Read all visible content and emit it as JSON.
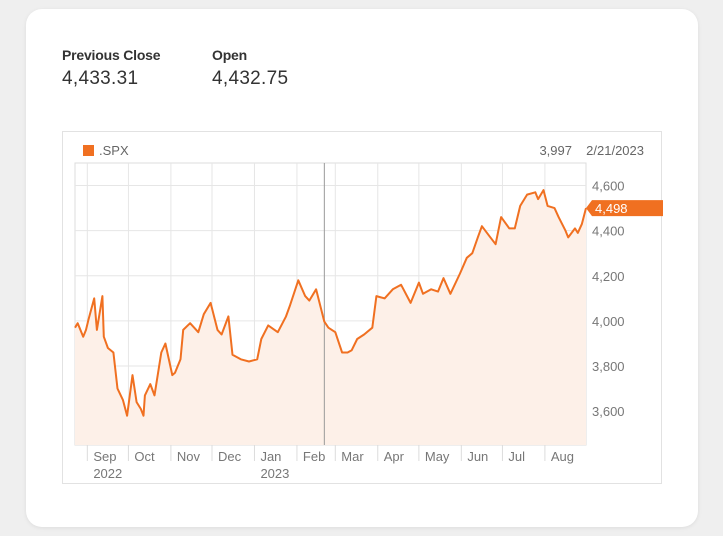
{
  "stats": {
    "previous_close_label": "Previous Close",
    "previous_close_value": "4,433.31",
    "open_label": "Open",
    "open_value": "4,432.75"
  },
  "chart_data": {
    "type": "area",
    "legend": [
      {
        "name": ".SPX",
        "color": "#f07021"
      }
    ],
    "legend_position": "top-left",
    "hover_readout": {
      "value": "3,997",
      "date": "2/21/2023"
    },
    "last_value_label": "4,498",
    "y_ticks": [
      3600,
      3800,
      4000,
      4200,
      4400,
      4600
    ],
    "y_tick_labels": [
      "3,600",
      "3,800",
      "4,000",
      "4,200",
      "4,400",
      "4,600"
    ],
    "ylim": [
      3450,
      4700
    ],
    "x_ticks": [
      {
        "label": "Sep",
        "year": "2022",
        "date": "2022-09-01"
      },
      {
        "label": "Oct",
        "year": "",
        "date": "2022-10-01"
      },
      {
        "label": "Nov",
        "year": "",
        "date": "2022-11-01"
      },
      {
        "label": "Dec",
        "year": "",
        "date": "2022-12-01"
      },
      {
        "label": "Jan",
        "year": "2023",
        "date": "2023-01-01"
      },
      {
        "label": "Feb",
        "year": "",
        "date": "2023-02-01"
      },
      {
        "label": "Mar",
        "year": "",
        "date": "2023-03-01"
      },
      {
        "label": "Apr",
        "year": "",
        "date": "2023-04-01"
      },
      {
        "label": "May",
        "year": "",
        "date": "2023-05-01"
      },
      {
        "label": "Jun",
        "year": "",
        "date": "2023-06-01"
      },
      {
        "label": "Jul",
        "year": "",
        "date": "2023-07-01"
      },
      {
        "label": "Aug",
        "year": "",
        "date": "2023-08-01"
      }
    ],
    "xlim": [
      "2022-08-23",
      "2023-08-31"
    ],
    "grid": true,
    "series": [
      {
        "name": ".SPX",
        "color": "#f07021",
        "fill": "#fdf0e8",
        "x": [
          "2022-08-23",
          "2022-08-25",
          "2022-08-29",
          "2022-08-31",
          "2022-09-02",
          "2022-09-06",
          "2022-09-08",
          "2022-09-12",
          "2022-09-13",
          "2022-09-16",
          "2022-09-20",
          "2022-09-23",
          "2022-09-27",
          "2022-09-30",
          "2022-10-04",
          "2022-10-07",
          "2022-10-10",
          "2022-10-12",
          "2022-10-13",
          "2022-10-17",
          "2022-10-20",
          "2022-10-25",
          "2022-10-28",
          "2022-11-02",
          "2022-11-04",
          "2022-11-08",
          "2022-11-10",
          "2022-11-15",
          "2022-11-21",
          "2022-11-25",
          "2022-11-30",
          "2022-12-05",
          "2022-12-08",
          "2022-12-13",
          "2022-12-16",
          "2022-12-22",
          "2022-12-28",
          "2023-01-03",
          "2023-01-06",
          "2023-01-11",
          "2023-01-18",
          "2023-01-24",
          "2023-01-27",
          "2023-02-02",
          "2023-02-07",
          "2023-02-10",
          "2023-02-15",
          "2023-02-21",
          "2023-02-24",
          "2023-03-01",
          "2023-03-06",
          "2023-03-10",
          "2023-03-13",
          "2023-03-17",
          "2023-03-22",
          "2023-03-28",
          "2023-03-31",
          "2023-04-06",
          "2023-04-12",
          "2023-04-18",
          "2023-04-25",
          "2023-05-01",
          "2023-05-04",
          "2023-05-10",
          "2023-05-15",
          "2023-05-19",
          "2023-05-24",
          "2023-05-31",
          "2023-06-05",
          "2023-06-09",
          "2023-06-13",
          "2023-06-16",
          "2023-06-21",
          "2023-06-26",
          "2023-06-30",
          "2023-07-06",
          "2023-07-10",
          "2023-07-14",
          "2023-07-19",
          "2023-07-25",
          "2023-07-27",
          "2023-07-31",
          "2023-08-03",
          "2023-08-08",
          "2023-08-11",
          "2023-08-16",
          "2023-08-18",
          "2023-08-23",
          "2023-08-25",
          "2023-08-28",
          "2023-08-31"
        ],
        "values": [
          3970,
          3990,
          3930,
          3960,
          4010,
          4100,
          3960,
          4110,
          3930,
          3880,
          3860,
          3700,
          3650,
          3580,
          3760,
          3640,
          3610,
          3580,
          3670,
          3720,
          3670,
          3860,
          3900,
          3760,
          3770,
          3830,
          3960,
          3990,
          3950,
          4030,
          4080,
          3960,
          3940,
          4020,
          3850,
          3830,
          3820,
          3830,
          3920,
          3980,
          3950,
          4020,
          4070,
          4180,
          4110,
          4090,
          4140,
          3997,
          3970,
          3950,
          3860,
          3860,
          3870,
          3920,
          3940,
          3970,
          4110,
          4100,
          4140,
          4160,
          4080,
          4170,
          4120,
          4140,
          4130,
          4190,
          4120,
          4210,
          4280,
          4300,
          4370,
          4420,
          4380,
          4340,
          4460,
          4410,
          4410,
          4510,
          4560,
          4570,
          4540,
          4580,
          4510,
          4500,
          4460,
          4400,
          4370,
          4410,
          4390,
          4430,
          4500
        ]
      }
    ]
  }
}
